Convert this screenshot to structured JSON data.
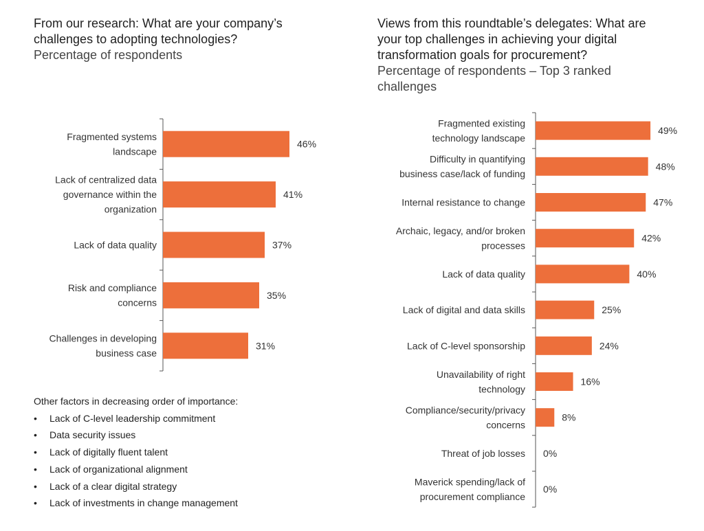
{
  "left": {
    "question": "From our research: What are your company’s challenges to adopting technologies?",
    "subtitle": "Percentage of  respondents"
  },
  "right": {
    "question": "Views from this roundtable’s delegates: What are your top challenges in achieving your digital transformation goals for procurement?",
    "subtitle": "Percentage of respondents – Top 3 ranked challenges"
  },
  "other_factors": {
    "heading": "Other factors in decreasing order of importance:",
    "items": [
      "Lack of C-level leadership commitment",
      "Data security issues",
      "Lack of digitally fluent talent",
      "Lack of organizational alignment",
      "Lack of a clear digital strategy",
      "Lack of investments in change management"
    ]
  },
  "colors": {
    "bar": "#ED6F3B",
    "axis": "#555555"
  },
  "chart_data": [
    {
      "type": "bar",
      "orientation": "horizontal",
      "title": "From our research: What are your company’s challenges to adopting technologies?",
      "subtitle": "Percentage of  respondents",
      "categories": [
        [
          "Fragmented systems",
          "landscape"
        ],
        [
          "Lack of centralized data",
          "governance within the",
          "organization"
        ],
        [
          "Lack of data quality"
        ],
        [
          "Risk and compliance",
          "concerns"
        ],
        [
          "Challenges in developing",
          "business case"
        ]
      ],
      "values": [
        46,
        41,
        37,
        35,
        31
      ],
      "value_labels": [
        "46%",
        "41%",
        "37%",
        "35%",
        "31%"
      ],
      "xlim": [
        0,
        100
      ],
      "grid": false
    },
    {
      "type": "bar",
      "orientation": "horizontal",
      "title": "Views from this roundtable’s delegates: What are your top challenges in achieving your digital transformation goals for procurement?",
      "subtitle": "Percentage of respondents – Top 3 ranked challenges",
      "categories": [
        [
          "Fragmented existing",
          "technology landscape"
        ],
        [
          "Difficulty in quantifying",
          "business case/lack of funding"
        ],
        [
          "Internal resistance to change"
        ],
        [
          "Archaic, legacy, and/or broken",
          "processes"
        ],
        [
          "Lack of data quality"
        ],
        [
          "Lack of digital and data skills"
        ],
        [
          "Lack of C-level sponsorship"
        ],
        [
          "Unavailability of right",
          "technology"
        ],
        [
          "Compliance/security/privacy",
          "concerns"
        ],
        [
          "Threat of job losses"
        ],
        [
          "Maverick spending/lack of",
          "procurement compliance"
        ]
      ],
      "values": [
        49,
        48,
        47,
        42,
        40,
        25,
        24,
        16,
        8,
        0,
        0
      ],
      "value_labels": [
        "49%",
        "48%",
        "47%",
        "42%",
        "40%",
        "25%",
        "24%",
        "16%",
        "8%",
        "0%",
        "0%"
      ],
      "xlim": [
        0,
        100
      ],
      "grid": false
    }
  ]
}
